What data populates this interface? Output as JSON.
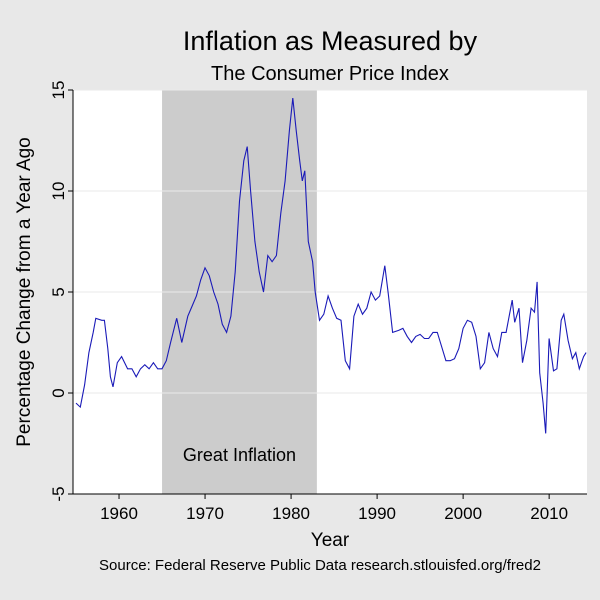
{
  "chart_data": {
    "type": "line",
    "title": "Inflation as Measured by",
    "subtitle": "The Consumer Price Index",
    "x_label": "Year",
    "y_label": "Percentage Change from a Year Ago",
    "source": "Source: Federal Reserve Public Data research.stlouisfed.org/fred2",
    "shade": {
      "x": [
        1965,
        1983
      ],
      "label": "Great Inflation",
      "color": "#cccccc"
    },
    "x": [
      1955.0,
      1955.5,
      1956,
      1956.5,
      1957,
      1957.3,
      1958,
      1958.3,
      1958.7,
      1959,
      1959.3,
      1959.8,
      1960.3,
      1961,
      1961.5,
      1962,
      1962.5,
      1963,
      1963.5,
      1964,
      1964.5,
      1965,
      1965.5,
      1966,
      1966.7,
      1967.3,
      1968,
      1968.5,
      1969,
      1969.5,
      1970,
      1970.5,
      1971,
      1971.5,
      1972,
      1972.5,
      1973,
      1973.5,
      1974,
      1974.5,
      1974.9,
      1975.3,
      1975.8,
      1976.3,
      1976.8,
      1977.3,
      1977.8,
      1978.3,
      1978.8,
      1979.3,
      1979.8,
      1980.2,
      1980.6,
      1981,
      1981.3,
      1981.6,
      1982,
      1982.5,
      1982.8,
      1983.3,
      1983.8,
      1984.3,
      1984.8,
      1985.3,
      1985.8,
      1986.3,
      1986.8,
      1987.3,
      1987.8,
      1988.3,
      1988.8,
      1989.3,
      1989.8,
      1990.3,
      1990.9,
      1991.3,
      1991.8,
      1992.5,
      1993,
      1993.5,
      1994,
      1994.5,
      1995,
      1995.5,
      1996,
      1996.5,
      1997,
      1997.5,
      1998,
      1998.5,
      1999,
      1999.5,
      2000,
      2000.5,
      2001,
      2001.5,
      2002,
      2002.5,
      2003,
      2003.5,
      2004,
      2004.5,
      2005,
      2005.7,
      2006,
      2006.5,
      2006.9,
      2007.4,
      2007.9,
      2008.3,
      2008.6,
      2008.9,
      2009.3,
      2009.6,
      2010,
      2010.5,
      2010.9,
      2011.4,
      2011.7,
      2012.2,
      2012.7,
      2013.1,
      2013.5,
      2014,
      2014.3
    ],
    "series": [
      {
        "name": "CPI inflation",
        "color": "#1a1ab8",
        "values": [
          -0.5,
          -0.7,
          0.4,
          2.0,
          3.0,
          3.7,
          3.6,
          3.6,
          2.2,
          0.8,
          0.3,
          1.5,
          1.8,
          1.2,
          1.2,
          0.8,
          1.2,
          1.4,
          1.2,
          1.5,
          1.2,
          1.2,
          1.6,
          2.5,
          3.7,
          2.5,
          3.8,
          4.3,
          4.8,
          5.6,
          6.2,
          5.8,
          5.0,
          4.4,
          3.4,
          3.0,
          3.8,
          6.0,
          9.5,
          11.5,
          12.2,
          10.0,
          7.5,
          6.0,
          5.0,
          6.8,
          6.5,
          6.8,
          8.9,
          10.5,
          13.0,
          14.6,
          13.0,
          11.5,
          10.5,
          11.0,
          7.5,
          6.5,
          5.0,
          3.6,
          3.9,
          4.8,
          4.2,
          3.7,
          3.6,
          1.6,
          1.2,
          3.8,
          4.4,
          3.9,
          4.2,
          5.0,
          4.6,
          4.8,
          6.3,
          4.9,
          3.0,
          3.1,
          3.2,
          2.8,
          2.5,
          2.8,
          2.9,
          2.7,
          2.7,
          3.0,
          3.0,
          2.3,
          1.6,
          1.6,
          1.7,
          2.2,
          3.2,
          3.6,
          3.5,
          2.8,
          1.2,
          1.5,
          3.0,
          2.2,
          1.8,
          3.0,
          3.0,
          4.6,
          3.5,
          4.2,
          1.5,
          2.6,
          4.2,
          4.0,
          5.5,
          1.0,
          -0.5,
          -2.0,
          2.7,
          1.1,
          1.2,
          3.6,
          3.9,
          2.6,
          1.7,
          2.0,
          1.2,
          1.8,
          2.0
        ]
      }
    ],
    "xlim": [
      1954.65,
      2014.4
    ],
    "ylim": [
      -5,
      15
    ],
    "xticks": [
      1960,
      1970,
      1980,
      1990,
      2000,
      2010
    ],
    "yticks": [
      -5,
      0,
      5,
      10,
      15
    ],
    "grid": true
  }
}
